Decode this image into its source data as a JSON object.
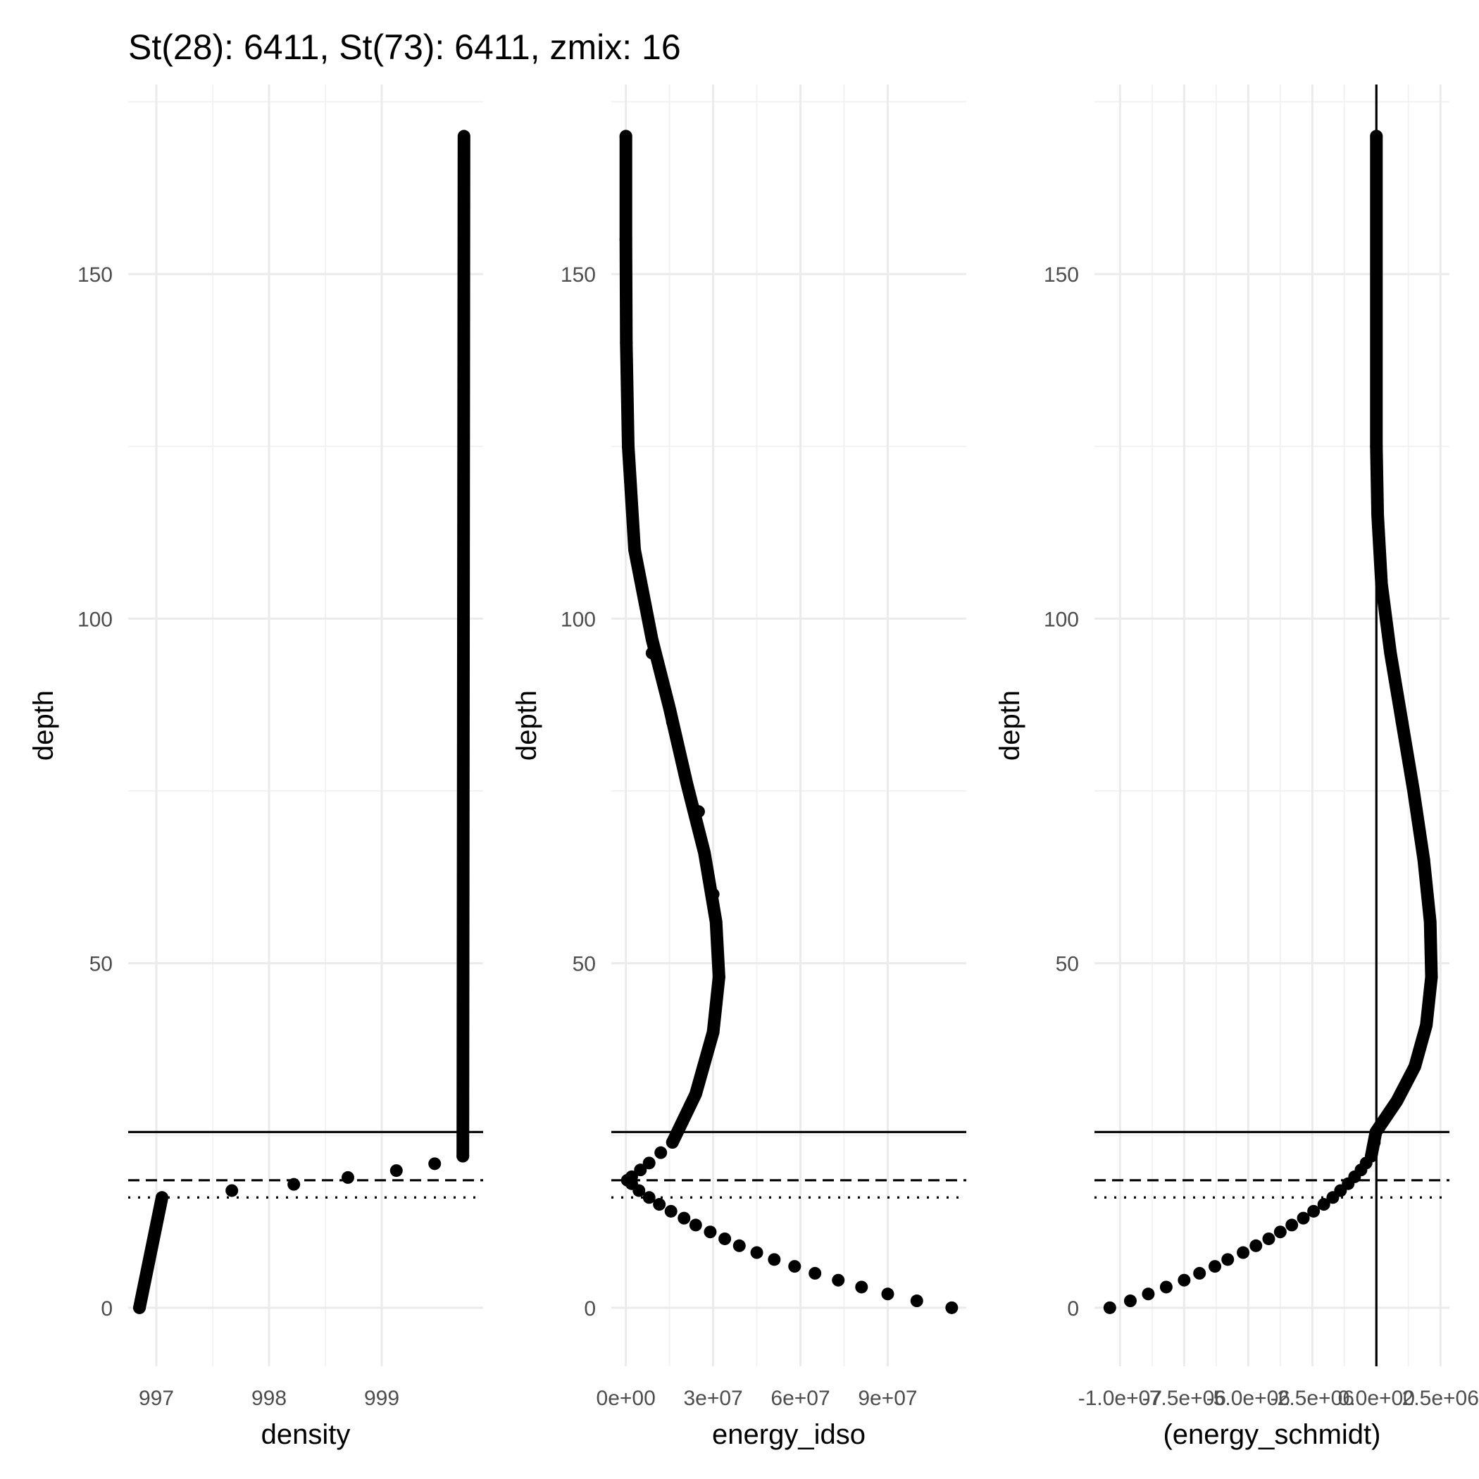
{
  "title": "St(28): 6411, St(73): 6411, zmix: 16",
  "chart_data": [
    {
      "type": "scatter",
      "xlabel": "density",
      "ylabel": "depth",
      "xlim": [
        996.75,
        999.9
      ],
      "ylim": [
        177.5,
        -8.5
      ],
      "x_ticks": [
        997,
        998,
        999
      ],
      "x_tick_labels": [
        "997",
        "998",
        "999"
      ],
      "y_ticks": [
        0,
        50,
        100,
        150
      ],
      "y_tick_labels": [
        "0",
        "50",
        "100",
        "150"
      ],
      "hlines": [
        {
          "y": 16,
          "style": "dotted"
        },
        {
          "y": 18.5,
          "style": "dashed"
        },
        {
          "y": 25.5,
          "style": "solid"
        }
      ],
      "vlines": [],
      "points": [
        [
          996.85,
          0
        ],
        [
          997.05,
          16
        ],
        [
          997.67,
          17
        ],
        [
          998.22,
          17.9
        ],
        [
          998.7,
          18.9
        ],
        [
          999.13,
          19.9
        ],
        [
          999.47,
          20.9
        ],
        [
          999.72,
          22
        ]
      ],
      "continuous": [
        {
          "x": [
            996.85,
            997.05
          ],
          "y": [
            0,
            16
          ]
        },
        {
          "x": [
            999.72,
            999.73
          ],
          "y": [
            22,
            170
          ]
        }
      ]
    },
    {
      "type": "scatter",
      "xlabel": "energy_idso",
      "ylabel": "depth",
      "xlim": [
        -5000000,
        117000000
      ],
      "ylim": [
        177.5,
        -8.5
      ],
      "x_ticks": [
        0,
        30000000,
        60000000,
        90000000
      ],
      "x_tick_labels": [
        "0e+00",
        "3e+07",
        "6e+07",
        "9e+07"
      ],
      "y_ticks": [
        0,
        50,
        100,
        150
      ],
      "y_tick_labels": [
        "0",
        "50",
        "100",
        "150"
      ],
      "hlines": [
        {
          "y": 16,
          "style": "dotted"
        },
        {
          "y": 18.5,
          "style": "dashed"
        },
        {
          "y": 25.5,
          "style": "solid"
        }
      ],
      "vlines": [],
      "points": [
        [
          112000000,
          0
        ],
        [
          100000000,
          1
        ],
        [
          90000000,
          2
        ],
        [
          81000000,
          3
        ],
        [
          73000000,
          4
        ],
        [
          65000000,
          5
        ],
        [
          58000000,
          6
        ],
        [
          51000000,
          7
        ],
        [
          45000000,
          8
        ],
        [
          39000000,
          9
        ],
        [
          34000000,
          10
        ],
        [
          29000000,
          11
        ],
        [
          24000000,
          12
        ],
        [
          20000000,
          13
        ],
        [
          15500000,
          14
        ],
        [
          11500000,
          15
        ],
        [
          8000000,
          16
        ],
        [
          4500000,
          17
        ],
        [
          2000000,
          18
        ],
        [
          500000,
          18.5
        ],
        [
          2000000,
          19
        ],
        [
          5000000,
          20
        ],
        [
          8000000,
          21
        ],
        [
          12000000,
          22.5
        ],
        [
          16000000,
          24
        ],
        [
          30000000,
          40
        ],
        [
          32000000,
          48
        ],
        [
          30000000,
          60
        ],
        [
          25000000,
          72
        ],
        [
          16000000,
          85
        ],
        [
          9000000,
          95
        ],
        [
          3000000,
          110
        ],
        [
          800000,
          125
        ],
        [
          150000,
          140
        ],
        [
          0,
          155
        ],
        [
          0,
          170
        ]
      ],
      "continuous": [
        {
          "x": [
            16000000,
            24000000,
            30000000,
            32000000,
            31000000,
            27000000,
            21000000,
            15000000,
            9000000,
            3000000,
            800000,
            150000,
            0,
            0
          ],
          "y": [
            24,
            31,
            40,
            48,
            56,
            66,
            76,
            87,
            97,
            110,
            125,
            140,
            155,
            170
          ]
        }
      ]
    },
    {
      "type": "scatter",
      "xlabel": "(energy_schmidt)",
      "ylabel": "depth",
      "xlim": [
        -11000000,
        2850000
      ],
      "ylim": [
        177.5,
        -8.5
      ],
      "x_ticks": [
        -10000000,
        -7500000,
        -5000000,
        -2500000,
        0,
        2500000
      ],
      "x_tick_labels": [
        "-1.0e+07",
        "-7.5e+06",
        "-5.0e+06",
        "-2.5e+06",
        "0.0e+00",
        "2.5e+06"
      ],
      "y_ticks": [
        0,
        50,
        100,
        150
      ],
      "y_tick_labels": [
        "0",
        "50",
        "100",
        "150"
      ],
      "hlines": [
        {
          "y": 16,
          "style": "dotted"
        },
        {
          "y": 18.5,
          "style": "dashed"
        },
        {
          "y": 25.5,
          "style": "solid"
        }
      ],
      "vlines": [
        {
          "x": 0,
          "style": "solid"
        }
      ],
      "points": [
        [
          -10400000,
          0
        ],
        [
          -9600000,
          1
        ],
        [
          -8900000,
          2
        ],
        [
          -8200000,
          3
        ],
        [
          -7500000,
          4
        ],
        [
          -6900000,
          5
        ],
        [
          -6300000,
          6
        ],
        [
          -5800000,
          7
        ],
        [
          -5200000,
          8
        ],
        [
          -4700000,
          9
        ],
        [
          -4200000,
          10
        ],
        [
          -3750000,
          11
        ],
        [
          -3300000,
          12
        ],
        [
          -2850000,
          13
        ],
        [
          -2450000,
          14
        ],
        [
          -2050000,
          15
        ],
        [
          -1700000,
          16
        ],
        [
          -1400000,
          17
        ],
        [
          -1100000,
          18
        ],
        [
          -850000,
          19
        ],
        [
          -600000,
          20
        ],
        [
          -400000,
          21
        ],
        [
          -200000,
          22
        ],
        [
          -80000,
          24
        ],
        [
          1500000,
          35
        ],
        [
          2150000,
          48
        ],
        [
          1850000,
          65
        ],
        [
          1000000,
          85
        ],
        [
          200000,
          105
        ],
        [
          0,
          125
        ],
        [
          0,
          170
        ]
      ],
      "continuous": [
        {
          "x": [
            -200000,
            -20000,
            800000,
            1500000,
            1950000,
            2150000,
            2100000,
            1850000,
            1450000,
            1000000,
            550000,
            200000,
            50000,
            0,
            0
          ],
          "y": [
            22,
            25.5,
            30,
            35,
            41,
            48,
            56,
            65,
            75,
            85,
            95,
            105,
            115,
            125,
            170
          ]
        }
      ]
    }
  ]
}
